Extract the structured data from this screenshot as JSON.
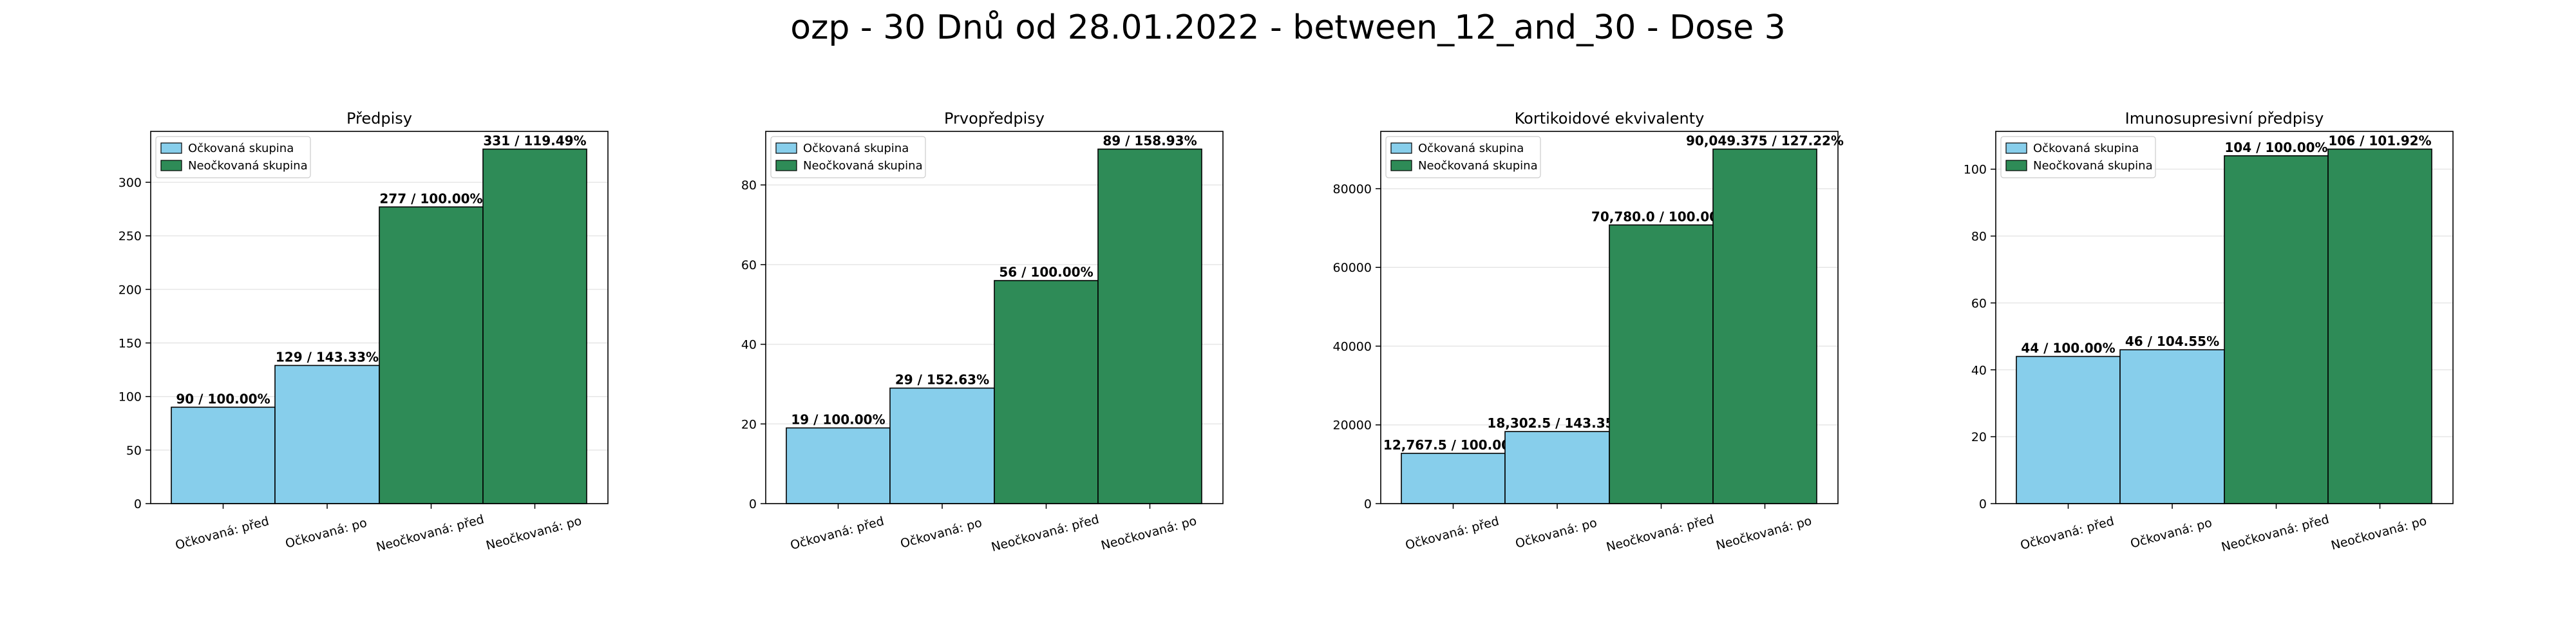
{
  "suptitle": "ozp - 30 Dnů od 28.01.2022 - between_12_and_30 - Dose 3",
  "colors": {
    "vaccinated": "#87ceeb",
    "unvaccinated": "#2e8b57",
    "edge": "#000000",
    "grid": "#e6e6e6"
  },
  "legend": [
    "Očkovaná skupina",
    "Neočkovaná skupina"
  ],
  "categories": [
    "Očkovaná: před",
    "Očkovaná: po",
    "Neočkovaná: před",
    "Neočkovaná: po"
  ],
  "chart_data": [
    {
      "type": "bar",
      "title": "Předpisy",
      "categories": [
        "Očkovaná: před",
        "Očkovaná: po",
        "Neočkovaná: před",
        "Neočkovaná: po"
      ],
      "values": [
        90,
        129,
        277,
        331
      ],
      "labels": [
        "90 / 100.00%",
        "129 / 143.33%",
        "277 / 100.00%",
        "331 / 119.49%"
      ],
      "ylim": [
        0,
        347.55
      ],
      "yticks": [
        0,
        50,
        100,
        150,
        200,
        250,
        300
      ],
      "ytick_labels": [
        "0",
        "50",
        "100",
        "150",
        "200",
        "250",
        "300"
      ],
      "grid": true,
      "legend_position": "top-left"
    },
    {
      "type": "bar",
      "title": "Prvopředpisy",
      "categories": [
        "Očkovaná: před",
        "Očkovaná: po",
        "Neočkovaná: před",
        "Neočkovaná: po"
      ],
      "values": [
        19,
        29,
        56,
        89
      ],
      "labels": [
        "19 / 100.00%",
        "29 / 152.63%",
        "56 / 100.00%",
        "89 / 158.93%"
      ],
      "ylim": [
        0,
        93.45
      ],
      "yticks": [
        0,
        20,
        40,
        60,
        80
      ],
      "ytick_labels": [
        "0",
        "20",
        "40",
        "60",
        "80"
      ],
      "grid": true,
      "legend_position": "top-left"
    },
    {
      "type": "bar",
      "title": "Kortikoidové ekvivalenty",
      "categories": [
        "Očkovaná: před",
        "Očkovaná: po",
        "Neočkovaná: před",
        "Neočkovaná: po"
      ],
      "values": [
        12767.5,
        18302.5,
        70780.0,
        90049.375
      ],
      "labels": [
        "12,767.5 / 100.00%",
        "18,302.5 / 143.35%",
        "70,780.0 / 100.00%",
        "90,049.375 / 127.22%"
      ],
      "ylim": [
        0,
        94551.84
      ],
      "yticks": [
        0,
        20000,
        40000,
        60000,
        80000
      ],
      "ytick_labels": [
        "0",
        "20000",
        "40000",
        "60000",
        "80000"
      ],
      "grid": true,
      "legend_position": "top-left"
    },
    {
      "type": "bar",
      "title": "Imunosupresivní předpisy",
      "categories": [
        "Očkovaná: před",
        "Očkovaná: po",
        "Neočkovaná: před",
        "Neočkovaná: po"
      ],
      "values": [
        44,
        46,
        104,
        106
      ],
      "labels": [
        "44 / 100.00%",
        "46 / 104.55%",
        "104 / 100.00%",
        "106 / 101.92%"
      ],
      "ylim": [
        0,
        111.3
      ],
      "yticks": [
        0,
        20,
        40,
        60,
        80,
        100
      ],
      "ytick_labels": [
        "0",
        "20",
        "40",
        "60",
        "80",
        "100"
      ],
      "grid": true,
      "legend_position": "top-left"
    }
  ]
}
